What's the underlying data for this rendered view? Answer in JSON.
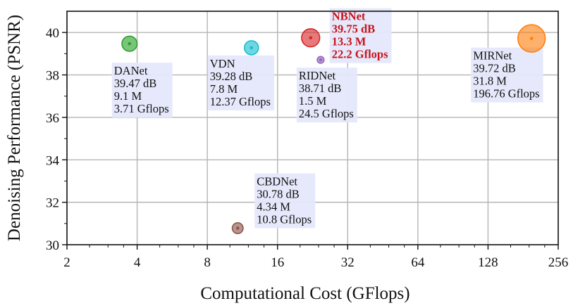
{
  "chart_data": {
    "type": "scatter",
    "xlabel": "Computational Cost (GFlops)",
    "ylabel": "Denoising Performance (PSNR)",
    "x_scale": "log2",
    "xlim": [
      2,
      256
    ],
    "ylim": [
      30,
      41
    ],
    "x_ticks": [
      2,
      4,
      8,
      16,
      32,
      64,
      128,
      256
    ],
    "y_ticks": [
      30,
      32,
      34,
      36,
      38,
      40
    ],
    "grid": true,
    "points": [
      {
        "name": "DANet",
        "x": 3.71,
        "y": 39.47,
        "params_m": 9.1,
        "color": "#2ca02c",
        "labels": [
          "DANet",
          "39.47 dB",
          "9.1 M",
          "3.71 Gflops"
        ]
      },
      {
        "name": "VDN",
        "x": 12.37,
        "y": 39.28,
        "params_m": 7.8,
        "color": "#17becf",
        "labels": [
          "VDN",
          "39.28 dB",
          "7.8 M",
          "12.37 Gflops"
        ]
      },
      {
        "name": "NBNet",
        "x": 22.2,
        "y": 39.75,
        "params_m": 13.3,
        "color": "#d62728",
        "highlight": true,
        "labels": [
          "NBNet",
          "39.75 dB",
          "13.3 M",
          "22.2 Gflops"
        ]
      },
      {
        "name": "RIDNet",
        "x": 24.5,
        "y": 38.71,
        "params_m": 1.5,
        "color": "#9467bd",
        "labels": [
          "RIDNet",
          "38.71 dB",
          "1.5 M",
          "24.5 Gflops"
        ]
      },
      {
        "name": "MIRNet",
        "x": 196.76,
        "y": 39.72,
        "params_m": 31.8,
        "color": "#ff7f0e",
        "labels": [
          "MIRNet",
          "39.72 dB",
          "31.8 M",
          "196.76 Gflops"
        ]
      },
      {
        "name": "CBDNet",
        "x": 10.8,
        "y": 30.78,
        "params_m": 4.34,
        "color": "#8c564b",
        "labels": [
          "CBDNet",
          "30.78 dB",
          "4.34 M",
          "10.8 Gflops"
        ]
      }
    ]
  }
}
